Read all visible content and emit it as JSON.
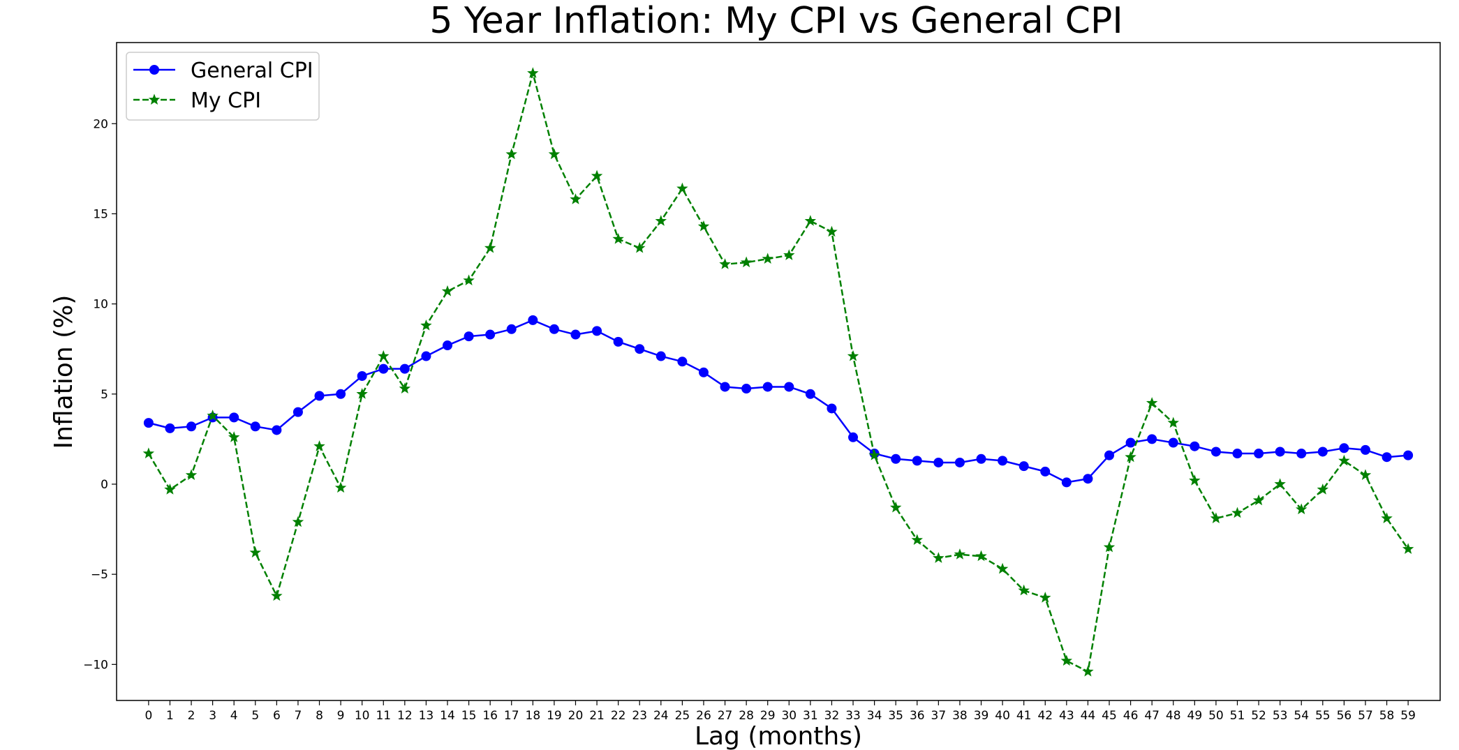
{
  "chart_data": {
    "type": "line",
    "title": "5 Year Inflation: My CPI vs General CPI",
    "xlabel": "Lag (months)",
    "ylabel": "Inflation (%)",
    "x": [
      0,
      1,
      2,
      3,
      4,
      5,
      6,
      7,
      8,
      9,
      10,
      11,
      12,
      13,
      14,
      15,
      16,
      17,
      18,
      19,
      20,
      21,
      22,
      23,
      24,
      25,
      26,
      27,
      28,
      29,
      30,
      31,
      32,
      33,
      34,
      35,
      36,
      37,
      38,
      39,
      40,
      41,
      42,
      43,
      44,
      45,
      46,
      47,
      48,
      49,
      50,
      51,
      52,
      53,
      54,
      55,
      56,
      57,
      58,
      59
    ],
    "xlim": [
      -1.5,
      60.5
    ],
    "ylim": [
      -12.0,
      24.5
    ],
    "yticks": [
      -10,
      -5,
      0,
      5,
      10,
      15,
      20
    ],
    "ytick_labels": [
      "−10",
      "−5",
      "0",
      "5",
      "10",
      "15",
      "20"
    ],
    "grid": false,
    "legend_position": "upper-left",
    "series": [
      {
        "name": "General CPI",
        "color": "#0000ff",
        "line_style": "solid",
        "marker": "circle",
        "values": [
          3.4,
          3.1,
          3.2,
          3.7,
          3.7,
          3.2,
          3.0,
          4.0,
          4.9,
          5.0,
          6.0,
          6.4,
          6.4,
          7.1,
          7.7,
          8.2,
          8.3,
          8.6,
          9.1,
          8.6,
          8.3,
          8.5,
          7.9,
          7.5,
          7.1,
          6.8,
          6.2,
          5.4,
          5.3,
          5.4,
          5.4,
          5.0,
          4.2,
          2.6,
          1.7,
          1.4,
          1.3,
          1.2,
          1.2,
          1.4,
          1.3,
          1.0,
          0.7,
          0.1,
          0.3,
          1.6,
          2.3,
          2.5,
          2.3,
          2.1,
          1.8,
          1.7,
          1.7,
          1.8,
          1.7,
          1.8,
          2.0,
          1.9,
          1.5,
          1.6
        ]
      },
      {
        "name": "My CPI",
        "color": "#008000",
        "line_style": "dashed",
        "marker": "star",
        "values": [
          1.7,
          -0.3,
          0.5,
          3.8,
          2.6,
          -3.8,
          -6.2,
          -2.1,
          2.1,
          -0.2,
          5.0,
          7.1,
          5.3,
          8.8,
          10.7,
          11.3,
          13.1,
          18.3,
          22.8,
          18.3,
          15.8,
          17.1,
          13.6,
          13.1,
          14.6,
          16.4,
          14.3,
          12.2,
          12.3,
          12.5,
          12.7,
          14.6,
          14.0,
          7.1,
          1.6,
          -1.3,
          -3.1,
          -4.1,
          -3.9,
          -4.0,
          -4.7,
          -5.9,
          -6.3,
          -9.8,
          -10.4,
          -3.5,
          1.5,
          4.5,
          3.4,
          0.2,
          -1.9,
          -1.6,
          -0.9,
          0.0,
          -1.4,
          -0.3,
          1.3,
          0.5,
          -1.9,
          -3.6
        ]
      }
    ]
  }
}
